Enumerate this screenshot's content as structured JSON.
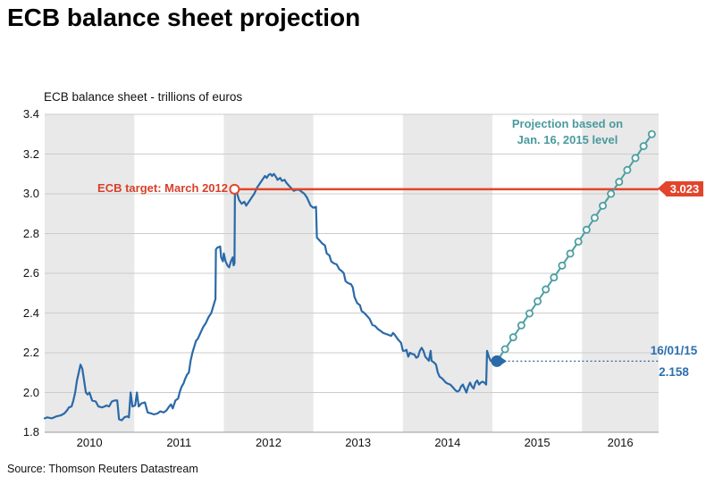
{
  "header": {
    "title": "ECB balance sheet projection"
  },
  "footer": {
    "source": "Source: Thomson Reuters Datastream"
  },
  "chart": {
    "subtitle": "ECB balance sheet - trillions of euros",
    "annotations": {
      "ecb_target_label": "ECB target: March 2012",
      "target_badge": "3.023",
      "projection_note_line1": "Projection based on",
      "projection_note_line2": "Jan. 16, 2015 level",
      "last_date": "16/01/15",
      "last_value": "2.158"
    },
    "colors": {
      "historical_line": "#2a6aa8",
      "projection_line": "#4d9fa2",
      "target_line": "#e2452b",
      "band_gray": "#e9e9e9",
      "gridline": "#cccccc",
      "axis_line": "#999999",
      "label_blue": "#2d6fb0",
      "label_teal": "#4a9a9d",
      "label_red": "#d8402a"
    }
  },
  "chart_data": {
    "type": "line",
    "title": "ECB balance sheet - trillions of euros",
    "ylabel": "trillions of euros",
    "ylim": [
      1.8,
      3.4
    ],
    "yticks": [
      "1.8",
      "2.0",
      "2.2",
      "2.4",
      "2.6",
      "2.8",
      "3.0",
      "3.2",
      "3.4"
    ],
    "x_years": [
      "2010",
      "2011",
      "2012",
      "2013",
      "2014",
      "2015",
      "2016"
    ],
    "x_range": [
      2010,
      2016.86
    ],
    "shaded_years": [
      2010,
      2012,
      2014,
      2016
    ],
    "grid": true,
    "target_level": 3.023,
    "target_start_year": 2012.12,
    "last_point": {
      "date": "16/01/15",
      "year": 2015.05,
      "value": 2.158
    },
    "series": [
      {
        "name": "ECB balance sheet (weekly, historical)",
        "style": "solid",
        "points": [
          [
            2010.0,
            1.87
          ],
          [
            2010.03,
            1.875
          ],
          [
            2010.08,
            1.87
          ],
          [
            2010.13,
            1.88
          ],
          [
            2010.18,
            1.885
          ],
          [
            2010.22,
            1.895
          ],
          [
            2010.25,
            1.91
          ],
          [
            2010.27,
            1.925
          ],
          [
            2010.3,
            1.93
          ],
          [
            2010.32,
            1.96
          ],
          [
            2010.34,
            2.0
          ],
          [
            2010.36,
            2.06
          ],
          [
            2010.38,
            2.1
          ],
          [
            2010.4,
            2.14
          ],
          [
            2010.42,
            2.12
          ],
          [
            2010.44,
            2.06
          ],
          [
            2010.46,
            2.0
          ],
          [
            2010.48,
            1.99
          ],
          [
            2010.5,
            2.0
          ],
          [
            2010.53,
            1.96
          ],
          [
            2010.57,
            1.955
          ],
          [
            2010.6,
            1.93
          ],
          [
            2010.64,
            1.925
          ],
          [
            2010.67,
            1.93
          ],
          [
            2010.69,
            1.935
          ],
          [
            2010.72,
            1.93
          ],
          [
            2010.75,
            1.955
          ],
          [
            2010.78,
            1.96
          ],
          [
            2010.81,
            1.96
          ],
          [
            2010.83,
            1.865
          ],
          [
            2010.86,
            1.86
          ],
          [
            2010.89,
            1.875
          ],
          [
            2010.92,
            1.88
          ],
          [
            2010.94,
            1.875
          ],
          [
            2010.96,
            2.0
          ],
          [
            2010.98,
            1.93
          ],
          [
            2011.01,
            1.935
          ],
          [
            2011.03,
            2.0
          ],
          [
            2011.05,
            1.93
          ],
          [
            2011.08,
            1.945
          ],
          [
            2011.12,
            1.95
          ],
          [
            2011.15,
            1.9
          ],
          [
            2011.19,
            1.895
          ],
          [
            2011.22,
            1.89
          ],
          [
            2011.26,
            1.895
          ],
          [
            2011.29,
            1.905
          ],
          [
            2011.33,
            1.9
          ],
          [
            2011.36,
            1.91
          ],
          [
            2011.39,
            1.93
          ],
          [
            2011.41,
            1.94
          ],
          [
            2011.43,
            1.92
          ],
          [
            2011.46,
            1.96
          ],
          [
            2011.49,
            1.97
          ],
          [
            2011.51,
            2.005
          ],
          [
            2011.53,
            2.03
          ],
          [
            2011.55,
            2.045
          ],
          [
            2011.57,
            2.07
          ],
          [
            2011.59,
            2.09
          ],
          [
            2011.61,
            2.1
          ],
          [
            2011.63,
            2.16
          ],
          [
            2011.65,
            2.2
          ],
          [
            2011.67,
            2.23
          ],
          [
            2011.69,
            2.26
          ],
          [
            2011.71,
            2.27
          ],
          [
            2011.74,
            2.3
          ],
          [
            2011.77,
            2.33
          ],
          [
            2011.8,
            2.35
          ],
          [
            2011.83,
            2.38
          ],
          [
            2011.86,
            2.4
          ],
          [
            2011.88,
            2.43
          ],
          [
            2011.9,
            2.46
          ],
          [
            2011.907,
            2.47
          ],
          [
            2011.912,
            2.72
          ],
          [
            2011.93,
            2.73
          ],
          [
            2011.96,
            2.735
          ],
          [
            2011.97,
            2.68
          ],
          [
            2011.99,
            2.66
          ],
          [
            2012.0,
            2.7
          ],
          [
            2012.02,
            2.66
          ],
          [
            2012.04,
            2.64
          ],
          [
            2012.06,
            2.63
          ],
          [
            2012.08,
            2.66
          ],
          [
            2012.1,
            2.68
          ],
          [
            2012.11,
            2.64
          ],
          [
            2012.12,
            2.65
          ],
          [
            2012.125,
            3.02
          ],
          [
            2012.15,
            3.0
          ],
          [
            2012.17,
            2.97
          ],
          [
            2012.2,
            2.95
          ],
          [
            2012.23,
            2.96
          ],
          [
            2012.25,
            2.94
          ],
          [
            2012.28,
            2.96
          ],
          [
            2012.31,
            2.98
          ],
          [
            2012.34,
            3.0
          ],
          [
            2012.37,
            3.03
          ],
          [
            2012.4,
            3.05
          ],
          [
            2012.43,
            3.07
          ],
          [
            2012.46,
            3.09
          ],
          [
            2012.48,
            3.08
          ],
          [
            2012.5,
            3.095
          ],
          [
            2012.52,
            3.1
          ],
          [
            2012.54,
            3.09
          ],
          [
            2012.56,
            3.1
          ],
          [
            2012.59,
            3.08
          ],
          [
            2012.6,
            3.07
          ],
          [
            2012.63,
            3.08
          ],
          [
            2012.65,
            3.065
          ],
          [
            2012.68,
            3.07
          ],
          [
            2012.7,
            3.055
          ],
          [
            2012.73,
            3.04
          ],
          [
            2012.75,
            3.03
          ],
          [
            2012.78,
            3.015
          ],
          [
            2012.81,
            3.02
          ],
          [
            2012.84,
            3.02
          ],
          [
            2012.87,
            3.01
          ],
          [
            2012.9,
            3.0
          ],
          [
            2012.93,
            2.98
          ],
          [
            2012.95,
            2.96
          ],
          [
            2012.97,
            2.94
          ],
          [
            2013.0,
            2.93
          ],
          [
            2013.03,
            2.935
          ],
          [
            2013.04,
            2.78
          ],
          [
            2013.07,
            2.765
          ],
          [
            2013.1,
            2.75
          ],
          [
            2013.13,
            2.74
          ],
          [
            2013.15,
            2.7
          ],
          [
            2013.18,
            2.69
          ],
          [
            2013.2,
            2.66
          ],
          [
            2013.23,
            2.65
          ],
          [
            2013.26,
            2.645
          ],
          [
            2013.29,
            2.62
          ],
          [
            2013.32,
            2.61
          ],
          [
            2013.34,
            2.6
          ],
          [
            2013.36,
            2.56
          ],
          [
            2013.39,
            2.55
          ],
          [
            2013.42,
            2.545
          ],
          [
            2013.44,
            2.53
          ],
          [
            2013.46,
            2.48
          ],
          [
            2013.49,
            2.45
          ],
          [
            2013.52,
            2.44
          ],
          [
            2013.54,
            2.41
          ],
          [
            2013.57,
            2.4
          ],
          [
            2013.6,
            2.385
          ],
          [
            2013.63,
            2.37
          ],
          [
            2013.66,
            2.34
          ],
          [
            2013.69,
            2.335
          ],
          [
            2013.72,
            2.32
          ],
          [
            2013.75,
            2.31
          ],
          [
            2013.78,
            2.3
          ],
          [
            2013.81,
            2.295
          ],
          [
            2013.84,
            2.29
          ],
          [
            2013.87,
            2.285
          ],
          [
            2013.89,
            2.3
          ],
          [
            2013.91,
            2.29
          ],
          [
            2013.94,
            2.27
          ],
          [
            2013.96,
            2.26
          ],
          [
            2013.98,
            2.25
          ],
          [
            2014.0,
            2.21
          ],
          [
            2014.02,
            2.21
          ],
          [
            2014.04,
            2.215
          ],
          [
            2014.06,
            2.18
          ],
          [
            2014.08,
            2.2
          ],
          [
            2014.1,
            2.195
          ],
          [
            2014.13,
            2.19
          ],
          [
            2014.15,
            2.175
          ],
          [
            2014.17,
            2.18
          ],
          [
            2014.19,
            2.21
          ],
          [
            2014.21,
            2.225
          ],
          [
            2014.23,
            2.21
          ],
          [
            2014.25,
            2.18
          ],
          [
            2014.27,
            2.17
          ],
          [
            2014.29,
            2.16
          ],
          [
            2014.31,
            2.21
          ],
          [
            2014.32,
            2.16
          ],
          [
            2014.35,
            2.15
          ],
          [
            2014.37,
            2.14
          ],
          [
            2014.39,
            2.1
          ],
          [
            2014.41,
            2.08
          ],
          [
            2014.44,
            2.07
          ],
          [
            2014.46,
            2.06
          ],
          [
            2014.48,
            2.05
          ],
          [
            2014.5,
            2.045
          ],
          [
            2014.53,
            2.04
          ],
          [
            2014.55,
            2.03
          ],
          [
            2014.57,
            2.02
          ],
          [
            2014.59,
            2.01
          ],
          [
            2014.61,
            2.005
          ],
          [
            2014.63,
            2.01
          ],
          [
            2014.65,
            2.03
          ],
          [
            2014.67,
            2.04
          ],
          [
            2014.69,
            2.02
          ],
          [
            2014.71,
            2.0
          ],
          [
            2014.73,
            2.03
          ],
          [
            2014.75,
            2.05
          ],
          [
            2014.77,
            2.03
          ],
          [
            2014.79,
            2.02
          ],
          [
            2014.81,
            2.05
          ],
          [
            2014.83,
            2.06
          ],
          [
            2014.85,
            2.04
          ],
          [
            2014.87,
            2.05
          ],
          [
            2014.89,
            2.055
          ],
          [
            2014.91,
            2.05
          ],
          [
            2014.93,
            2.04
          ],
          [
            2014.94,
            2.21
          ],
          [
            2014.96,
            2.18
          ],
          [
            2014.98,
            2.16
          ],
          [
            2015.0,
            2.155
          ],
          [
            2015.02,
            2.16
          ],
          [
            2015.05,
            2.158
          ]
        ]
      },
      {
        "name": "Projection based on Jan. 16, 2015 level",
        "style": "dashed-circles",
        "points": [
          [
            2015.05,
            2.158
          ],
          [
            2015.141,
            2.218
          ],
          [
            2015.232,
            2.278
          ],
          [
            2015.323,
            2.338
          ],
          [
            2015.414,
            2.398
          ],
          [
            2015.505,
            2.459
          ],
          [
            2015.596,
            2.519
          ],
          [
            2015.687,
            2.579
          ],
          [
            2015.778,
            2.639
          ],
          [
            2015.869,
            2.699
          ],
          [
            2015.96,
            2.759
          ],
          [
            2016.051,
            2.819
          ],
          [
            2016.142,
            2.879
          ],
          [
            2016.233,
            2.94
          ],
          [
            2016.324,
            3.0
          ],
          [
            2016.415,
            3.06
          ],
          [
            2016.506,
            3.12
          ],
          [
            2016.597,
            3.18
          ],
          [
            2016.688,
            3.24
          ],
          [
            2016.78,
            3.3
          ]
        ]
      }
    ]
  }
}
